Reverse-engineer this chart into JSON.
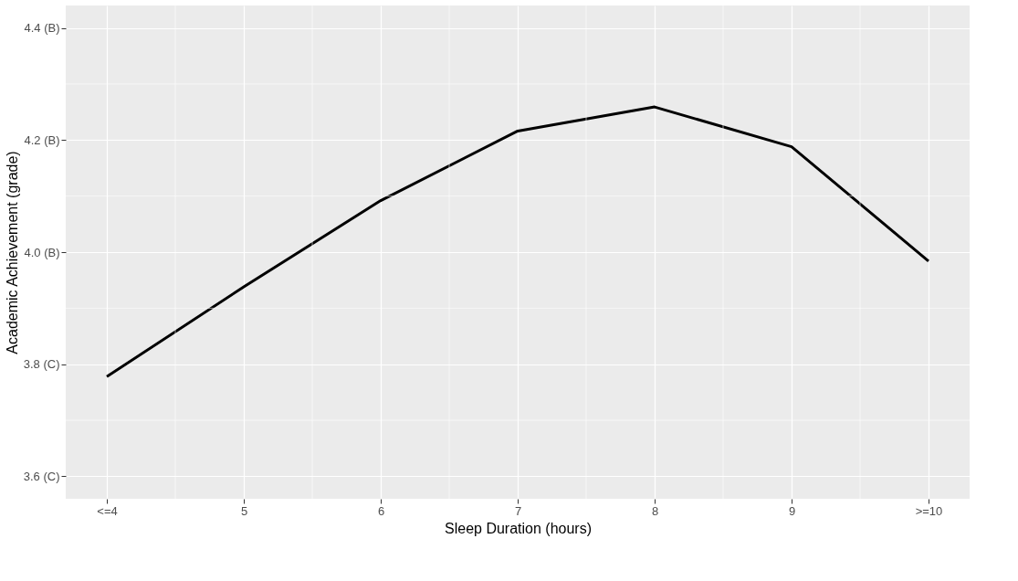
{
  "chart_data": {
    "type": "line",
    "xlabel": "Sleep Duration (hours)",
    "ylabel": "Academic Achievement (grade)",
    "x": [
      4,
      5,
      6,
      7,
      8,
      9,
      10
    ],
    "series": [
      {
        "color": "#000000",
        "values": [
          3.778,
          3.938,
          4.092,
          4.216,
          4.259,
          4.188,
          3.984
        ]
      }
    ],
    "xlim": [
      3.7,
      10.3
    ],
    "ylim": [
      3.56,
      4.44
    ],
    "xticks": [
      {
        "value": 4,
        "label": "<=4"
      },
      5,
      6,
      7,
      8,
      9,
      {
        "value": 10,
        "label": ">=10"
      }
    ],
    "yticks": [
      {
        "value": 3.6,
        "label": "3.6 (C)"
      },
      {
        "value": 3.8,
        "label": "3.8 (C)"
      },
      {
        "value": 4.0,
        "label": "4.0 (B)"
      },
      {
        "value": 4.2,
        "label": "4.2 (B)"
      },
      {
        "value": 4.4,
        "label": "4.4 (B)"
      }
    ],
    "grid": true,
    "marker": "none",
    "line_style": "solid"
  }
}
